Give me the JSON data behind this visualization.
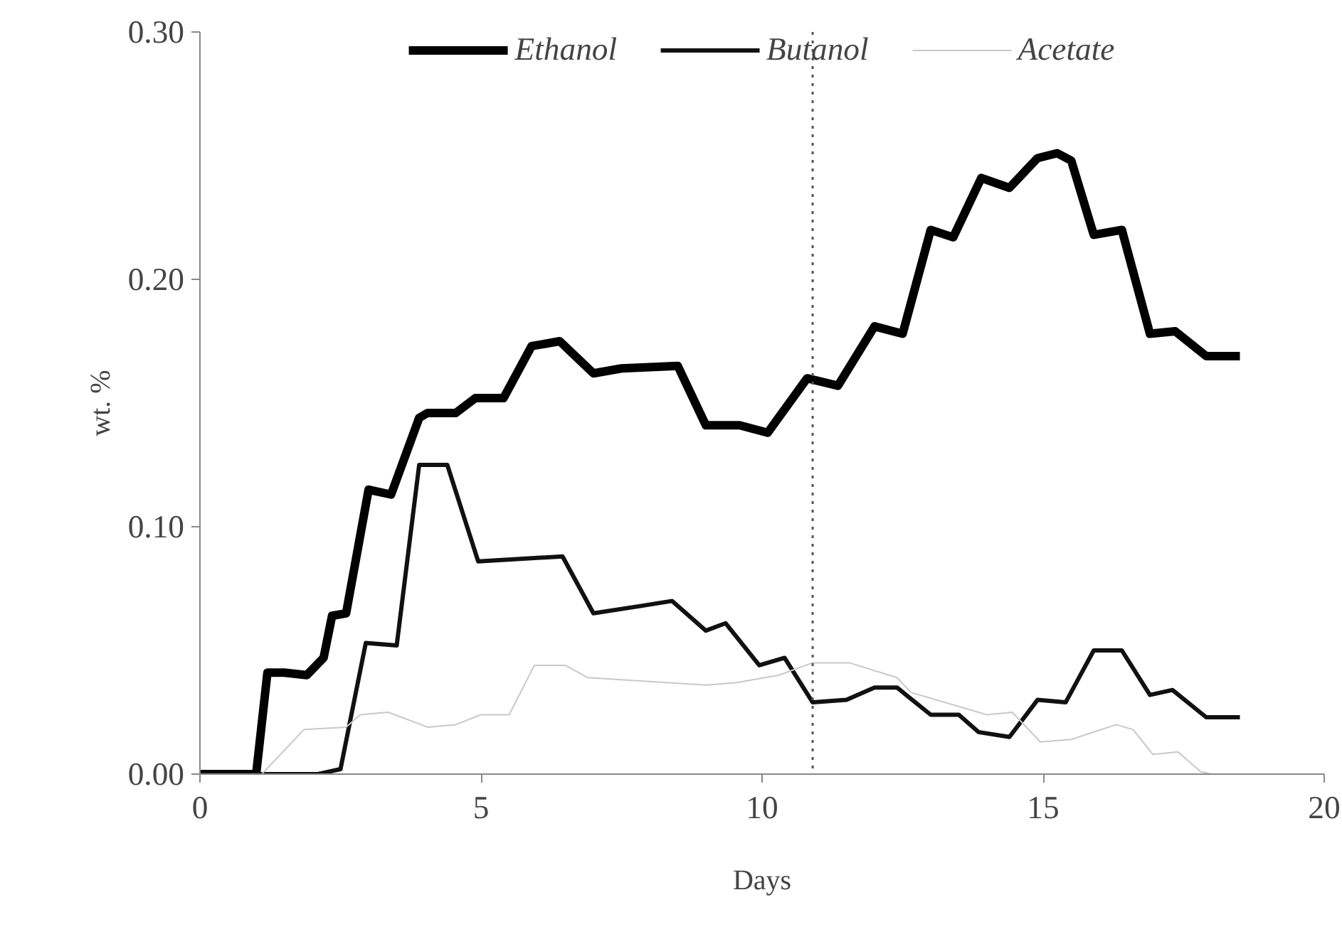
{
  "chart_data": {
    "type": "line",
    "xlabel": "Days",
    "ylabel": "wt. %",
    "xlim": [
      0,
      20
    ],
    "ylim": [
      0,
      0.3
    ],
    "xticks": [
      0,
      5,
      10,
      15,
      20
    ],
    "yticks": [
      {
        "value": 0,
        "label": "0.00"
      },
      {
        "value": 0.1,
        "label": "0.10"
      },
      {
        "value": 0.2,
        "label": "0.20"
      },
      {
        "value": 0.3,
        "label": "0.30"
      }
    ],
    "grid": false,
    "legend": "top",
    "line_style": "solid",
    "marker": "none",
    "ref_lines": [
      {
        "axis": "x",
        "value": 10.9,
        "label": null,
        "color": "#555555",
        "line_style": "dotted"
      }
    ],
    "series": [
      {
        "name": "Ethanol",
        "color": "#000000",
        "x": [
          0,
          1.0,
          1.2,
          1.5,
          1.9,
          2.2,
          2.35,
          2.6,
          3.0,
          3.4,
          3.9,
          4.05,
          4.55,
          4.9,
          5.4,
          5.9,
          6.4,
          7.0,
          7.5,
          8.5,
          9.0,
          9.6,
          10.1,
          10.45,
          10.8,
          11.35,
          12.0,
          12.5,
          13.0,
          13.4,
          13.9,
          14.4,
          14.9,
          15.25,
          15.5,
          15.9,
          16.4,
          16.9,
          17.35,
          17.9,
          18.5
        ],
        "values": [
          0,
          0,
          0.041,
          0.041,
          0.04,
          0.047,
          0.064,
          0.065,
          0.115,
          0.113,
          0.144,
          0.146,
          0.146,
          0.152,
          0.152,
          0.173,
          0.175,
          0.162,
          0.164,
          0.165,
          0.141,
          0.141,
          0.138,
          0.149,
          0.16,
          0.157,
          0.181,
          0.178,
          0.22,
          0.217,
          0.241,
          0.237,
          0.249,
          0.251,
          0.248,
          0.218,
          0.22,
          0.178,
          0.179,
          0.169,
          0.169
        ]
      },
      {
        "name": "Butanol",
        "color": "#111111",
        "x": [
          0,
          2.1,
          2.5,
          2.95,
          3.5,
          3.9,
          4.4,
          4.95,
          6.45,
          7.0,
          7.85,
          8.4,
          9.0,
          9.35,
          9.95,
          10.4,
          10.9,
          11.5,
          12.0,
          12.4,
          13.0,
          13.5,
          13.85,
          14.4,
          14.9,
          15.4,
          15.9,
          16.4,
          16.9,
          17.3,
          17.9,
          18.5
        ],
        "values": [
          0,
          0,
          0.002,
          0.053,
          0.052,
          0.125,
          0.125,
          0.086,
          0.088,
          0.065,
          0.068,
          0.07,
          0.058,
          0.061,
          0.044,
          0.047,
          0.029,
          0.03,
          0.035,
          0.035,
          0.024,
          0.024,
          0.017,
          0.015,
          0.03,
          0.029,
          0.05,
          0.05,
          0.032,
          0.034,
          0.023,
          0.023
        ]
      },
      {
        "name": "Acetate",
        "color": "#c8c8c8",
        "x": [
          0,
          1.1,
          1.85,
          2.6,
          2.85,
          3.35,
          4.05,
          4.55,
          5.0,
          5.5,
          5.95,
          6.5,
          6.9,
          9.0,
          9.55,
          10.3,
          10.9,
          11.55,
          12.4,
          12.65,
          14.0,
          14.45,
          14.95,
          15.5,
          16.3,
          16.6,
          16.95,
          17.4,
          17.8,
          18.0
        ],
        "values": [
          0,
          0,
          0.018,
          0.019,
          0.024,
          0.025,
          0.019,
          0.02,
          0.024,
          0.024,
          0.044,
          0.044,
          0.039,
          0.036,
          0.037,
          0.04,
          0.045,
          0.045,
          0.039,
          0.033,
          0.024,
          0.025,
          0.013,
          0.014,
          0.02,
          0.018,
          0.008,
          0.009,
          0.001,
          0
        ]
      }
    ]
  }
}
